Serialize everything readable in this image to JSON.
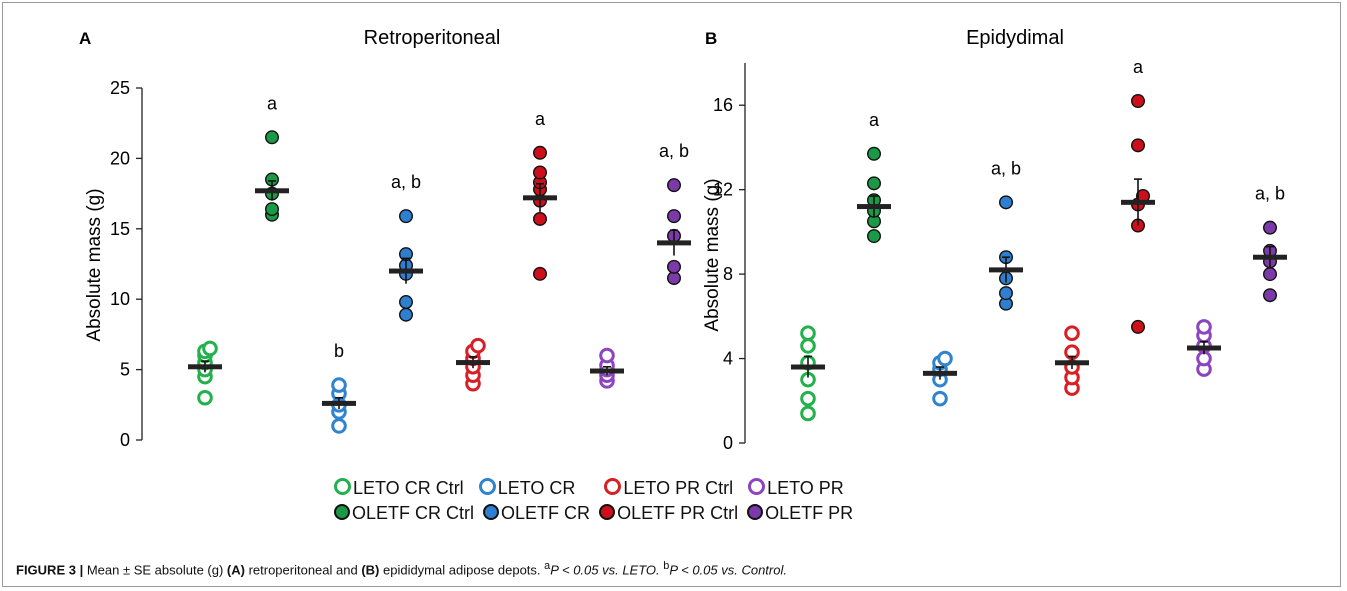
{
  "caption": {
    "label": "FIGURE 3 |",
    "text_before_a": " Mean ± SE absolute (g) ",
    "panel_a": "(A)",
    "text_mid": " retroperitoneal and ",
    "panel_b": "(B)",
    "text_after": " epididymal adipose depots. ",
    "note_a_sup": "a",
    "note_a_text": "P < 0.05 vs. LETO. ",
    "note_b_sup": "b",
    "note_b_text": "P < 0.05 vs. Control."
  },
  "legend": {
    "row1": [
      {
        "label": "LETO CR Ctrl",
        "color": "#22b14c",
        "filled": false
      },
      {
        "label": "LETO CR",
        "color": "#2f83cf",
        "filled": false
      },
      {
        "label": "LETO PR Ctrl",
        "color": "#d81f26",
        "filled": false
      },
      {
        "label": "LETO PR",
        "color": "#8e44c1",
        "filled": false
      }
    ],
    "row2": [
      {
        "label": "OLETF CR Ctrl",
        "color": "#1a9a46",
        "filled": true
      },
      {
        "label": "OLETF CR",
        "color": "#2f7fd0",
        "filled": true
      },
      {
        "label": "OLETF PR Ctrl",
        "color": "#cc0f1a",
        "filled": true
      },
      {
        "label": "OLETF PR",
        "color": "#7b3aa8",
        "filled": true
      }
    ]
  },
  "chart_data": [
    {
      "type": "scatter",
      "panel": "A",
      "title": "Retroperitoneal",
      "ylabel": "Absolute mass (g)",
      "ylim": [
        0,
        25
      ],
      "yticks": [
        0,
        5,
        10,
        15,
        20,
        25
      ],
      "groups": [
        {
          "name": "LETO CR Ctrl",
          "color": "#22b14c",
          "filled": false,
          "mean": 5.2,
          "se": 0.4,
          "sig": "",
          "points": [
            3.0,
            4.5,
            5.0,
            5.5,
            6.0,
            6.3,
            6.5
          ]
        },
        {
          "name": "OLETF CR Ctrl",
          "color": "#1a9a46",
          "filled": true,
          "mean": 17.7,
          "se": 0.7,
          "sig": "a",
          "points": [
            16.0,
            16.4,
            17.5,
            18.5,
            21.5
          ]
        },
        {
          "name": "LETO CR",
          "color": "#2f83cf",
          "filled": false,
          "mean": 2.6,
          "se": 0.4,
          "sig": "b",
          "points": [
            1.0,
            2.0,
            2.5,
            3.3,
            3.9
          ]
        },
        {
          "name": "OLETF CR",
          "color": "#2f7fd0",
          "filled": true,
          "mean": 12.0,
          "se": 0.9,
          "sig": "a, b",
          "points": [
            8.9,
            9.8,
            11.8,
            12.4,
            13.2,
            15.9
          ]
        },
        {
          "name": "LETO PR Ctrl",
          "color": "#d81f26",
          "filled": false,
          "mean": 5.5,
          "se": 0.4,
          "sig": "",
          "points": [
            4.0,
            4.6,
            5.2,
            5.8,
            6.3,
            6.7
          ]
        },
        {
          "name": "OLETF PR Ctrl",
          "color": "#cc0f1a",
          "filled": true,
          "mean": 17.2,
          "se": 1.0,
          "sig": "a",
          "points": [
            11.8,
            15.7,
            17.0,
            17.8,
            18.3,
            19.0,
            20.4
          ]
        },
        {
          "name": "LETO PR",
          "color": "#8e44c1",
          "filled": false,
          "mean": 4.9,
          "se": 0.3,
          "sig": "",
          "points": [
            4.2,
            4.6,
            5.0,
            5.3,
            6.0
          ]
        },
        {
          "name": "OLETF PR",
          "color": "#7b3aa8",
          "filled": true,
          "mean": 14.0,
          "se": 0.9,
          "sig": "a, b",
          "points": [
            11.5,
            12.3,
            14.5,
            15.9,
            18.1
          ]
        }
      ]
    },
    {
      "type": "scatter",
      "panel": "B",
      "title": "Epidydimal",
      "ylabel": "Absolute mass (g)",
      "ylim": [
        0,
        18
      ],
      "yticks": [
        0,
        4,
        8,
        12,
        16
      ],
      "groups": [
        {
          "name": "LETO CR Ctrl",
          "color": "#22b14c",
          "filled": false,
          "mean": 3.6,
          "se": 0.5,
          "sig": "",
          "points": [
            1.4,
            2.1,
            3.0,
            3.8,
            4.6,
            5.2
          ]
        },
        {
          "name": "OLETF CR Ctrl",
          "color": "#1a9a46",
          "filled": true,
          "mean": 11.2,
          "se": 0.5,
          "sig": "a",
          "points": [
            9.8,
            10.5,
            11.0,
            11.5,
            12.3,
            13.7
          ]
        },
        {
          "name": "LETO CR",
          "color": "#2f83cf",
          "filled": false,
          "mean": 3.3,
          "se": 0.3,
          "sig": "",
          "points": [
            2.1,
            3.0,
            3.5,
            3.8,
            4.0
          ]
        },
        {
          "name": "OLETF CR",
          "color": "#2f7fd0",
          "filled": true,
          "mean": 8.2,
          "se": 0.6,
          "sig": "a, b",
          "points": [
            6.6,
            7.1,
            7.8,
            8.8,
            11.4
          ]
        },
        {
          "name": "LETO PR Ctrl",
          "color": "#d81f26",
          "filled": false,
          "mean": 3.8,
          "se": 0.3,
          "sig": "",
          "points": [
            2.6,
            3.1,
            3.6,
            4.3,
            5.2
          ]
        },
        {
          "name": "OLETF PR Ctrl",
          "color": "#cc0f1a",
          "filled": true,
          "mean": 11.4,
          "se": 1.1,
          "sig": "a",
          "points": [
            5.5,
            10.3,
            11.3,
            11.7,
            14.1,
            16.2
          ]
        },
        {
          "name": "LETO PR",
          "color": "#8e44c1",
          "filled": false,
          "mean": 4.5,
          "se": 0.3,
          "sig": "",
          "points": [
            3.5,
            4.0,
            4.6,
            5.1,
            5.5
          ]
        },
        {
          "name": "OLETF PR",
          "color": "#7b3aa8",
          "filled": true,
          "mean": 8.8,
          "se": 0.5,
          "sig": "a, b",
          "points": [
            7.0,
            8.0,
            8.6,
            9.1,
            10.2
          ]
        }
      ]
    }
  ]
}
